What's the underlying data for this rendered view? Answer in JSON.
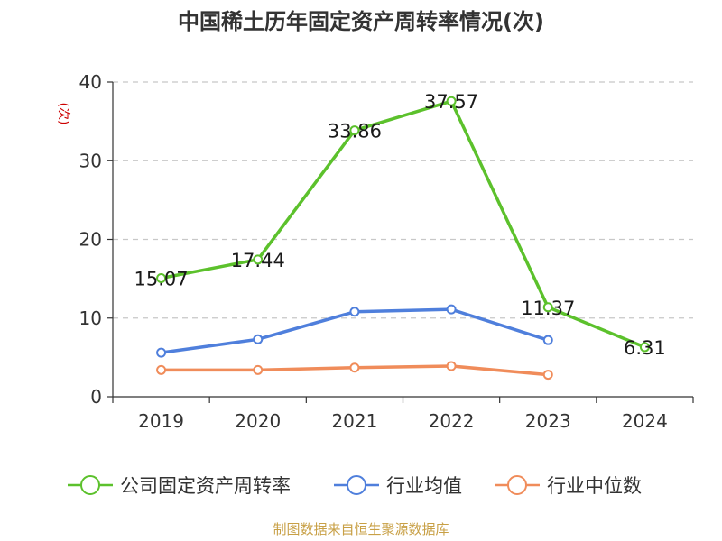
{
  "chart_data": {
    "type": "line",
    "title": "中国稀土历年固定资产周转率情况(次)",
    "ylabel": "(次)",
    "xlabel": "",
    "categories": [
      "2019",
      "2020",
      "2021",
      "2022",
      "2023",
      "2024"
    ],
    "ylim": [
      0,
      40
    ],
    "yticks": [
      0,
      10,
      20,
      30,
      40
    ],
    "grid": true,
    "legend_position": "bottom",
    "series": [
      {
        "name": "公司固定资产周转率",
        "color": "#5cc12c",
        "values": [
          15.07,
          17.44,
          33.86,
          37.57,
          11.37,
          6.31
        ],
        "labels": [
          "15.07",
          "17.44",
          "33.86",
          "37.57",
          "11.37",
          "6.31"
        ]
      },
      {
        "name": "行业均值",
        "color": "#4f7fdc",
        "values": [
          5.6,
          7.3,
          10.8,
          11.1,
          7.2,
          null
        ]
      },
      {
        "name": "行业中位数",
        "color": "#f08c5a",
        "values": [
          3.4,
          3.4,
          3.7,
          3.9,
          2.8,
          null
        ]
      }
    ]
  },
  "source": "制图数据来自恒生聚源数据库"
}
